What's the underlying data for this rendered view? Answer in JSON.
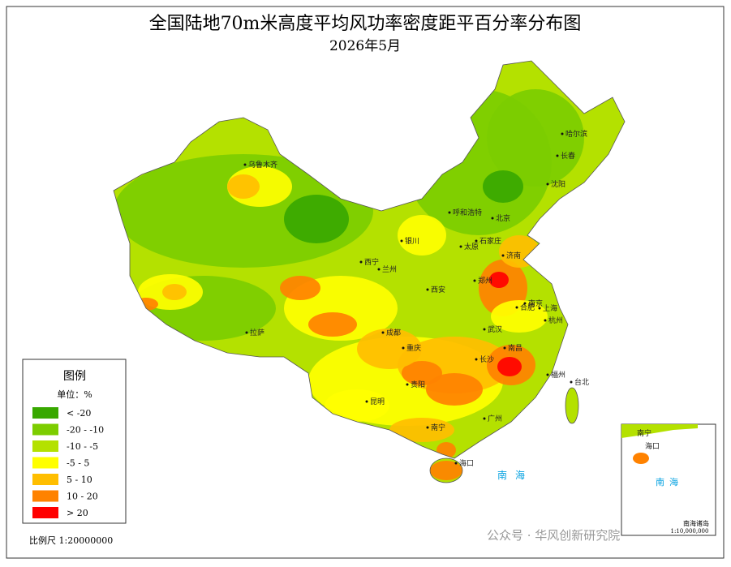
{
  "title": "全国陆地70m米高度平均风功率密度距平百分率分布图",
  "subtitle": "2026年5月",
  "legend": {
    "title": "图例",
    "unit": "单位：%",
    "items": [
      {
        "label": "< -20",
        "color": "#38a800"
      },
      {
        "label": "-20 - -10",
        "color": "#7ccd00"
      },
      {
        "label": "-10 - -5",
        "color": "#b4e100"
      },
      {
        "label": "-5 - 5",
        "color": "#ffff00"
      },
      {
        "label": "5 - 10",
        "color": "#ffbe00"
      },
      {
        "label": "10 - 20",
        "color": "#ff8200"
      },
      {
        "label": "> 20",
        "color": "#ff0000"
      }
    ]
  },
  "cities": [
    "乌鲁木齐",
    "哈尔滨",
    "长春",
    "沈阳",
    "呼和浩特",
    "北京",
    "银川",
    "太原",
    "石家庄",
    "济南",
    "西宁",
    "兰州",
    "郑州",
    "西安",
    "南京",
    "上海",
    "合肥",
    "杭州",
    "拉萨",
    "成都",
    "武汉",
    "重庆",
    "长沙",
    "南昌",
    "福州",
    "台北",
    "贵阳",
    "昆明",
    "广州",
    "南宁",
    "海口"
  ],
  "sea_label": "南海",
  "inset": {
    "sea_label": "南海",
    "islands_label": "南海诸岛",
    "scale": "1:10,000,000",
    "cities": [
      "南宁",
      "海口"
    ]
  },
  "scale": "比例尺 1:20000000",
  "watermark": "公众号 · 华风创新研究院"
}
